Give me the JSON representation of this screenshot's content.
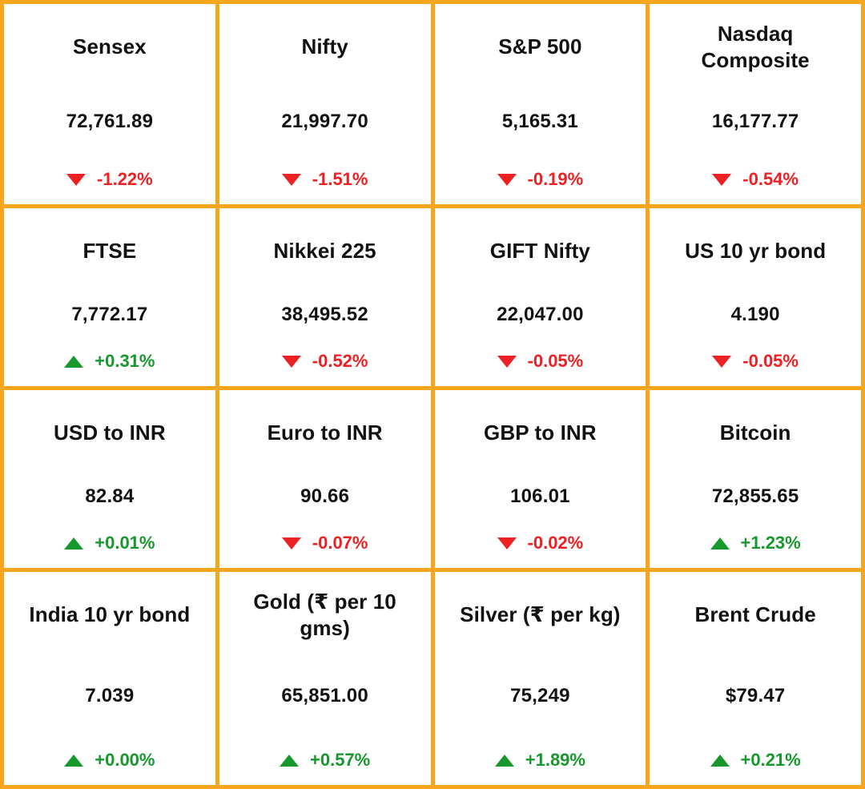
{
  "colors": {
    "grid_border": "#F7A51D",
    "tile_background": "#FFFFFF",
    "text": "#121212",
    "up": "#17982D",
    "down": "#ED2024"
  },
  "icons": {
    "up": "up-triangle-icon",
    "down": "down-triangle-icon"
  },
  "chart_data": {
    "type": "table",
    "columns": [
      "instrument",
      "value",
      "change_pct",
      "direction"
    ],
    "rows": [
      {
        "instrument": "Sensex",
        "value": "72,761.89",
        "change_pct": "-1.22%",
        "direction": "down"
      },
      {
        "instrument": "Nifty",
        "value": "21,997.70",
        "change_pct": "-1.51%",
        "direction": "down"
      },
      {
        "instrument": "S&P 500",
        "value": "5,165.31",
        "change_pct": "-0.19%",
        "direction": "down"
      },
      {
        "instrument": "Nasdaq Composite",
        "value": "16,177.77",
        "change_pct": "-0.54%",
        "direction": "down"
      },
      {
        "instrument": "FTSE",
        "value": "7,772.17",
        "change_pct": "+0.31%",
        "direction": "up"
      },
      {
        "instrument": "Nikkei 225",
        "value": "38,495.52",
        "change_pct": "-0.52%",
        "direction": "down"
      },
      {
        "instrument": "GIFT Nifty",
        "value": "22,047.00",
        "change_pct": "-0.05%",
        "direction": "down"
      },
      {
        "instrument": "US 10 yr bond",
        "value": "4.190",
        "change_pct": "-0.05%",
        "direction": "down"
      },
      {
        "instrument": "USD to INR",
        "value": "82.84",
        "change_pct": "+0.01%",
        "direction": "up"
      },
      {
        "instrument": "Euro to INR",
        "value": "90.66",
        "change_pct": "-0.07%",
        "direction": "down"
      },
      {
        "instrument": "GBP to INR",
        "value": "106.01",
        "change_pct": "-0.02%",
        "direction": "down"
      },
      {
        "instrument": "Bitcoin",
        "value": "72,855.65",
        "change_pct": "+1.23%",
        "direction": "up"
      },
      {
        "instrument": "India 10 yr bond",
        "value": "7.039",
        "change_pct": "+0.00%",
        "direction": "up"
      },
      {
        "instrument": "Gold (₹ per 10 gms)",
        "value": "65,851.00",
        "change_pct": "+0.57%",
        "direction": "up"
      },
      {
        "instrument": "Silver (₹ per kg)",
        "value": "75,249",
        "change_pct": "+1.89%",
        "direction": "up"
      },
      {
        "instrument": "Brent Crude",
        "value": "$79.47",
        "change_pct": "+0.21%",
        "direction": "up"
      }
    ]
  }
}
